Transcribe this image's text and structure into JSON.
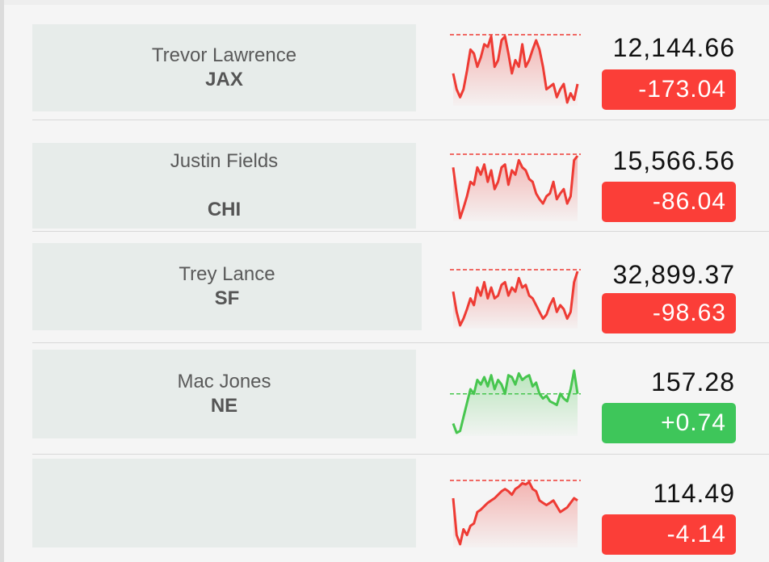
{
  "colors": {
    "negative": "#fb3e38",
    "positive": "#3ec65a",
    "neg_line": "#ee3b34",
    "pos_line": "#47c64f"
  },
  "stocks": [
    {
      "name": "Trevor Lawrence",
      "team": "JAX",
      "price": "12,144.66",
      "change": "-173.04",
      "trend": "down",
      "spark": [
        40,
        52,
        58,
        52,
        38,
        22,
        25,
        35,
        28,
        18,
        20,
        12,
        35,
        30,
        15,
        12,
        25,
        40,
        30,
        35,
        18,
        35,
        30,
        22,
        15,
        22,
        35,
        52,
        50,
        48,
        58,
        52,
        48,
        62,
        55,
        60,
        48
      ]
    },
    {
      "name": "Justin Fields",
      "team": "CHI",
      "price": "15,566.56",
      "change": "-86.04",
      "trend": "down",
      "spark": [
        20,
        38,
        55,
        48,
        40,
        30,
        32,
        20,
        25,
        18,
        30,
        22,
        35,
        30,
        20,
        18,
        32,
        22,
        25,
        15,
        20,
        22,
        28,
        30,
        38,
        42,
        45,
        40,
        38,
        30,
        42,
        38,
        35,
        45,
        40,
        15,
        12
      ]
    },
    {
      "name": "Trey Lance",
      "team": "SF",
      "price": "32,899.37",
      "change": "-98.63",
      "trend": "down",
      "spark": [
        25,
        40,
        50,
        45,
        38,
        30,
        35,
        22,
        28,
        18,
        30,
        22,
        30,
        28,
        20,
        18,
        28,
        22,
        25,
        15,
        22,
        20,
        28,
        30,
        35,
        40,
        45,
        42,
        35,
        30,
        40,
        35,
        38,
        45,
        40,
        18,
        10
      ]
    },
    {
      "name": "Mac Jones",
      "team": "NE",
      "price": "157.28",
      "change": "+0.74",
      "trend": "up",
      "spark": [
        62,
        72,
        70,
        55,
        40,
        25,
        30,
        15,
        20,
        12,
        22,
        10,
        25,
        15,
        20,
        30,
        10,
        12,
        20,
        8,
        15,
        12,
        10,
        22,
        18,
        30,
        35,
        32,
        38,
        40,
        42,
        30,
        35,
        38,
        25,
        5,
        30
      ]
    },
    {
      "name": "",
      "team": "",
      "price": "114.49",
      "change": "-4.14",
      "trend": "down",
      "spark": [
        18,
        50,
        58,
        45,
        50,
        42,
        40,
        30,
        28,
        25,
        22,
        20,
        18,
        15,
        12,
        10,
        12,
        15,
        10,
        8,
        5,
        6,
        4,
        10,
        12,
        20,
        22,
        24,
        22,
        20,
        25,
        30,
        28,
        26,
        22,
        18,
        20
      ]
    }
  ]
}
